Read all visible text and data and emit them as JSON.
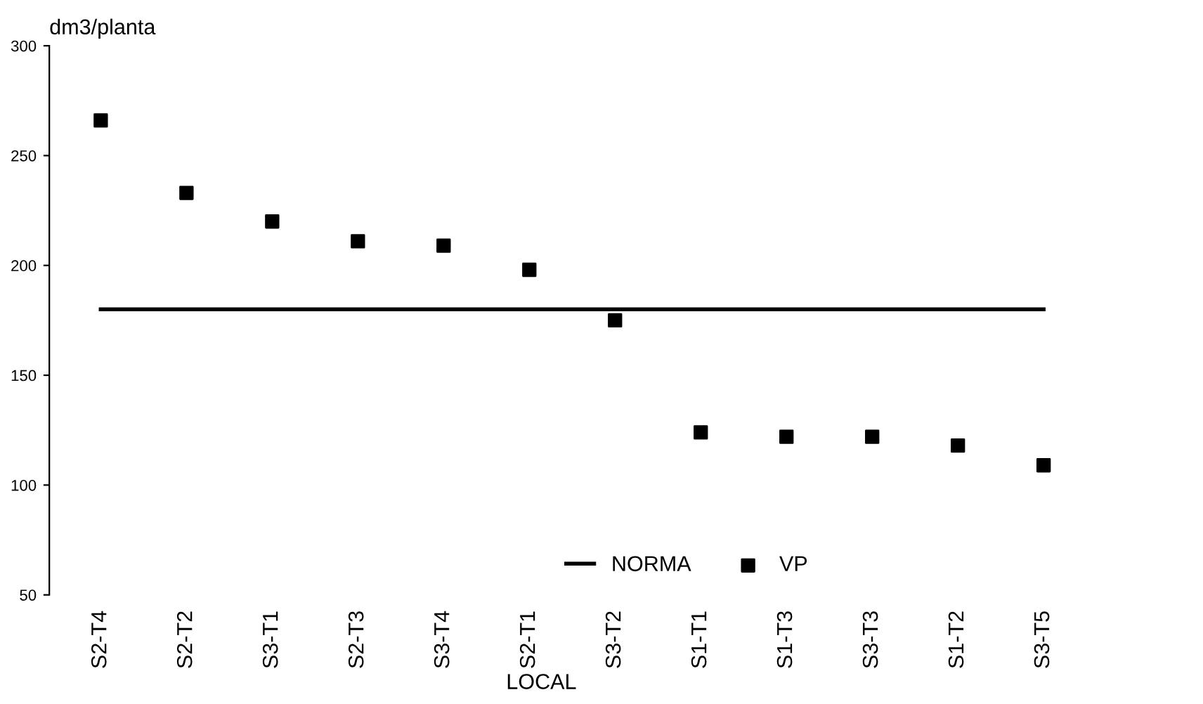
{
  "chart_data": {
    "type": "scatter",
    "ylabel": "dm3/planta",
    "xlabel": "LOCAL",
    "categories": [
      "S2-T4",
      "S2-T2",
      "S3-T1",
      "S2-T3",
      "S3-T4",
      "S2-T1",
      "S3-T2",
      "S1-T1",
      "S1-T3",
      "S3-T3",
      "S1-T2",
      "S3-T5"
    ],
    "series": [
      {
        "name": "NORMA",
        "type": "line",
        "color": "#000000",
        "marker": "none",
        "values": [
          180,
          180,
          180,
          180,
          180,
          180,
          180,
          180,
          180,
          180,
          180,
          180
        ]
      },
      {
        "name": "VP",
        "color": "#000000",
        "marker": "square",
        "values": [
          266,
          233,
          220,
          211,
          209,
          198,
          175,
          124,
          122,
          122,
          118,
          109
        ]
      }
    ],
    "ylim": [
      50,
      300
    ],
    "yticks": [
      50,
      100,
      150,
      200,
      250,
      300
    ],
    "grid": false,
    "legend": "bottom"
  }
}
